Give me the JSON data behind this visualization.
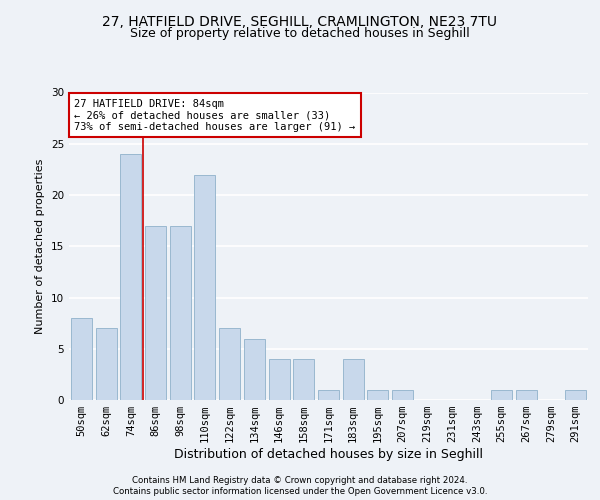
{
  "title_line1": "27, HATFIELD DRIVE, SEGHILL, CRAMLINGTON, NE23 7TU",
  "title_line2": "Size of property relative to detached houses in Seghill",
  "xlabel": "Distribution of detached houses by size in Seghill",
  "ylabel": "Number of detached properties",
  "categories": [
    "50sqm",
    "62sqm",
    "74sqm",
    "86sqm",
    "98sqm",
    "110sqm",
    "122sqm",
    "134sqm",
    "146sqm",
    "158sqm",
    "171sqm",
    "183sqm",
    "195sqm",
    "207sqm",
    "219sqm",
    "231sqm",
    "243sqm",
    "255sqm",
    "267sqm",
    "279sqm",
    "291sqm"
  ],
  "values": [
    8,
    7,
    24,
    17,
    17,
    22,
    7,
    6,
    4,
    4,
    1,
    4,
    1,
    1,
    0,
    0,
    0,
    1,
    1,
    0,
    1
  ],
  "bar_color": "#c8d8eb",
  "bar_edge_color": "#9ab8d0",
  "vline_x_index": 2.5,
  "annotation_text_line1": "27 HATFIELD DRIVE: 84sqm",
  "annotation_text_line2": "← 26% of detached houses are smaller (33)",
  "annotation_text_line3": "73% of semi-detached houses are larger (91) →",
  "annotation_box_color": "#ffffff",
  "annotation_box_edge_color": "#cc0000",
  "vline_color": "#cc0000",
  "footer_line1": "Contains HM Land Registry data © Crown copyright and database right 2024.",
  "footer_line2": "Contains public sector information licensed under the Open Government Licence v3.0.",
  "ylim": [
    0,
    30
  ],
  "yticks": [
    0,
    5,
    10,
    15,
    20,
    25,
    30
  ],
  "bg_color": "#eef2f7",
  "axes_bg_color": "#eef2f7",
  "grid_color": "#ffffff",
  "title1_fontsize": 10,
  "title2_fontsize": 9,
  "xlabel_fontsize": 9,
  "ylabel_fontsize": 8,
  "tick_fontsize": 7.5
}
